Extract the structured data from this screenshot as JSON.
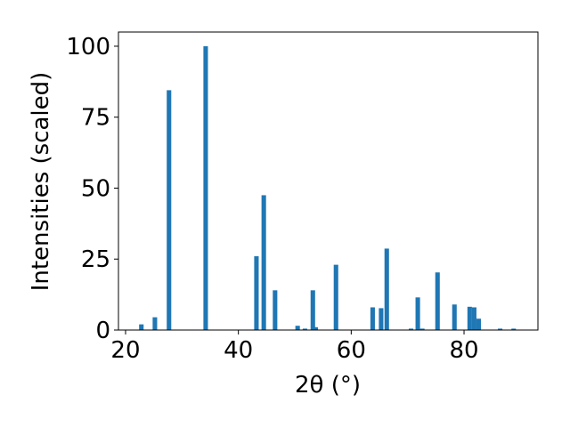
{
  "chart_data": {
    "type": "bar",
    "x_label": "2θ (°)",
    "y_label": "Intensities (scaled)",
    "x": [
      22.8,
      25.2,
      27.7,
      34.2,
      43.2,
      44.5,
      46.5,
      50.5,
      51.8,
      53.2,
      53.7,
      57.3,
      63.8,
      65.3,
      66.3,
      70.6,
      71.8,
      72.6,
      75.3,
      78.3,
      81.0,
      81.8,
      82.6,
      86.4,
      88.8
    ],
    "values": [
      2,
      4.5,
      84.5,
      100,
      26,
      47.5,
      14,
      1.5,
      0.5,
      14,
      1,
      23,
      8,
      7.7,
      28.7,
      0.5,
      11.5,
      0.5,
      20.3,
      9,
      8.2,
      8,
      4,
      0.5,
      0.5
    ],
    "color": "#1f77b4",
    "xlim": [
      18.74,
      93.1
    ],
    "xticks": [
      20,
      40,
      60,
      80
    ],
    "ylim": [
      0,
      105
    ],
    "yticks": [
      0,
      25,
      50,
      75,
      100
    ],
    "grid": false
  }
}
